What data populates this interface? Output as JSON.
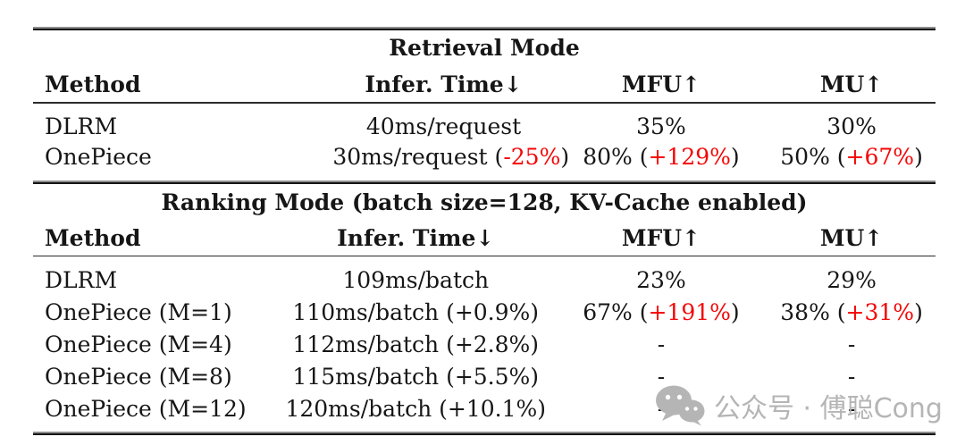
{
  "colors": {
    "text": "#161616",
    "highlight_red": "#f40606",
    "rule": "#151515",
    "watermark_gray": "#b5b5b5"
  },
  "table": {
    "sections": [
      {
        "title": "Retrieval Mode",
        "columns": [
          "Method",
          "Infer. Time↓",
          "MFU↑",
          "MU↑"
        ],
        "rows": [
          {
            "method": "DLRM",
            "infer_time": [
              {
                "t": "40ms/request"
              }
            ],
            "mfu": [
              {
                "t": "35%"
              }
            ],
            "mu": [
              {
                "t": "30%"
              }
            ]
          },
          {
            "method": "OnePiece",
            "infer_time": [
              {
                "t": "30ms/request ("
              },
              {
                "t": "-25%",
                "red": true
              },
              {
                "t": ")"
              }
            ],
            "mfu": [
              {
                "t": "80% ("
              },
              {
                "t": "+129%",
                "red": true
              },
              {
                "t": ")"
              }
            ],
            "mu": [
              {
                "t": "50% ("
              },
              {
                "t": "+67%",
                "red": true
              },
              {
                "t": ")"
              }
            ]
          }
        ]
      },
      {
        "title": "Ranking Mode (batch size=128, KV-Cache enabled)",
        "columns": [
          "Method",
          "Infer. Time↓",
          "MFU↑",
          "MU↑"
        ],
        "rows": [
          {
            "method": "DLRM",
            "infer_time": [
              {
                "t": "109ms/batch"
              }
            ],
            "mfu": [
              {
                "t": "23%"
              }
            ],
            "mu": [
              {
                "t": "29%"
              }
            ]
          },
          {
            "method": "OnePiece (M=1)",
            "infer_time": [
              {
                "t": "110ms/batch (+0.9%)"
              }
            ],
            "mfu": [
              {
                "t": "67% ("
              },
              {
                "t": "+191%",
                "red": true
              },
              {
                "t": ")"
              }
            ],
            "mu": [
              {
                "t": "38% ("
              },
              {
                "t": "+31%",
                "red": true
              },
              {
                "t": ")"
              }
            ]
          },
          {
            "method": "OnePiece (M=4)",
            "infer_time": [
              {
                "t": "112ms/batch (+2.8%)"
              }
            ],
            "mfu": [
              {
                "t": "-"
              }
            ],
            "mu": [
              {
                "t": "-"
              }
            ]
          },
          {
            "method": "OnePiece (M=8)",
            "infer_time": [
              {
                "t": "115ms/batch (+5.5%)"
              }
            ],
            "mfu": [
              {
                "t": "-"
              }
            ],
            "mu": [
              {
                "t": "-"
              }
            ]
          },
          {
            "method": "OnePiece (M=12)",
            "infer_time": [
              {
                "t": "120ms/batch (+10.1%)"
              }
            ],
            "mfu": [
              {
                "t": "-"
              }
            ],
            "mu": [
              {
                "t": "-"
              }
            ]
          }
        ]
      }
    ]
  },
  "watermark": {
    "icon": "wechat-icon",
    "text": "公众号 · 傅聪Cong"
  }
}
